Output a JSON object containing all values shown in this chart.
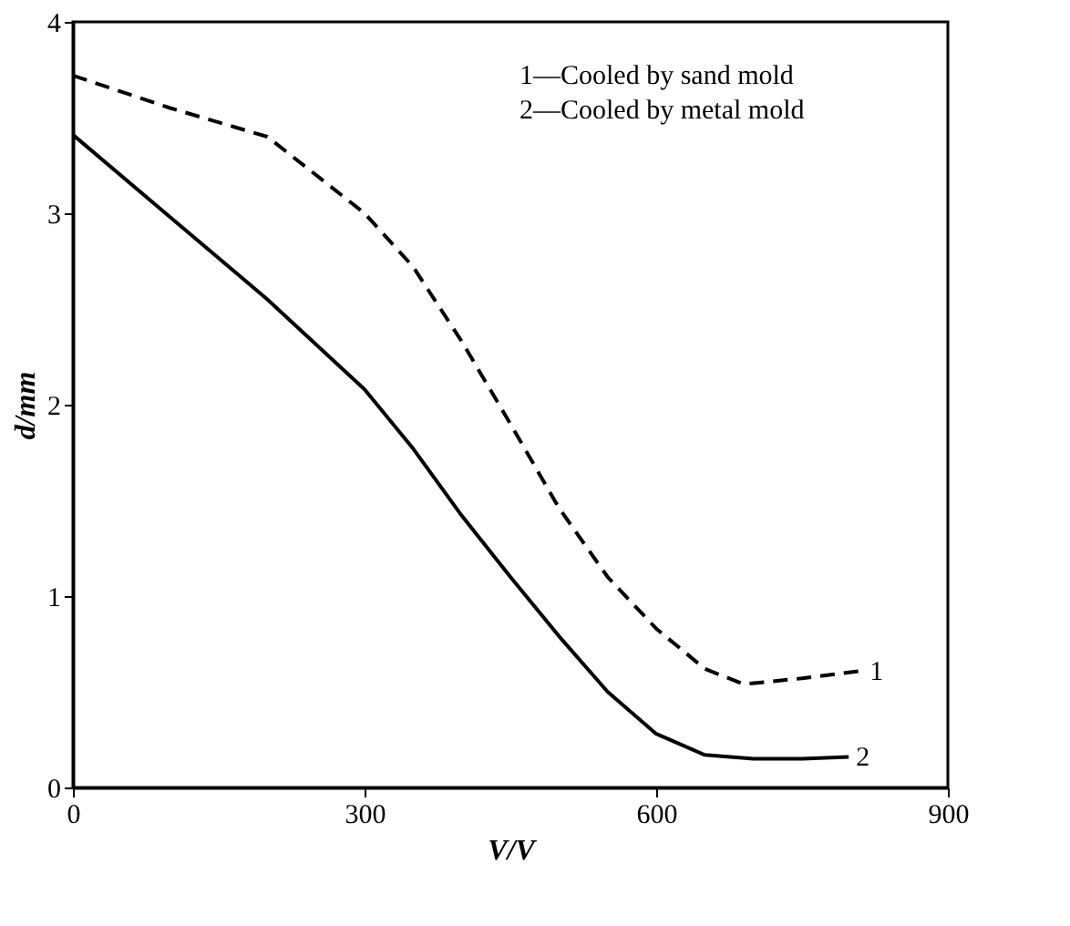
{
  "chart_data": {
    "type": "line",
    "xlabel": "V/V",
    "ylabel": "d/mm",
    "xlim": [
      0,
      900
    ],
    "xticks": [
      0,
      300,
      600,
      900
    ],
    "ylim": [
      0,
      4
    ],
    "yticks": [
      0,
      1,
      2,
      3,
      4
    ],
    "grid": false,
    "marker": "none",
    "annotations": [
      "1—Cooled by sand mold",
      "2—Cooled by metal mold"
    ],
    "series": [
      {
        "name": "1",
        "color": "#000000",
        "line_style": "dashed",
        "x": [
          0,
          100,
          200,
          300,
          350,
          400,
          450,
          500,
          550,
          600,
          650,
          690,
          750,
          812
        ],
        "values": [
          3.72,
          3.55,
          3.4,
          3.0,
          2.72,
          2.33,
          1.9,
          1.46,
          1.1,
          0.83,
          0.62,
          0.54,
          0.57,
          0.61
        ]
      },
      {
        "name": "2",
        "color": "#000000",
        "line_style": "solid",
        "x": [
          0,
          100,
          200,
          300,
          350,
          400,
          450,
          500,
          550,
          600,
          650,
          700,
          750,
          798
        ],
        "values": [
          3.41,
          2.98,
          2.55,
          2.08,
          1.77,
          1.42,
          1.1,
          0.79,
          0.5,
          0.28,
          0.17,
          0.15,
          0.15,
          0.16
        ]
      }
    ]
  }
}
